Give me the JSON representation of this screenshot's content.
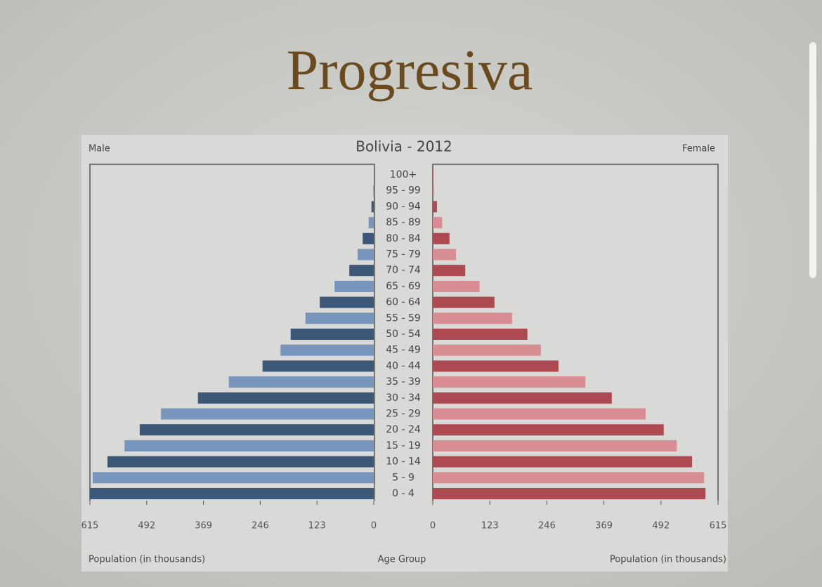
{
  "slide_title": "Progresiva",
  "chart_data": {
    "type": "pyramid",
    "title": "Bolivia - 2012",
    "xlabel": "Population (in thousands)",
    "center_label": "Age Group",
    "categories": [
      "0 - 4",
      "5 - 9",
      "10 - 14",
      "15 - 19",
      "20 - 24",
      "25 - 29",
      "30 - 34",
      "35 - 39",
      "40 - 44",
      "45 - 49",
      "50 - 54",
      "55 - 59",
      "60 - 64",
      "65 - 69",
      "70 - 74",
      "75 - 79",
      "80 - 84",
      "85 - 89",
      "90 - 94",
      "95 - 99",
      "100+"
    ],
    "series": [
      {
        "name": "Male",
        "colors": [
          "#3c5879",
          "#7896bd"
        ],
        "values": [
          615,
          609,
          577,
          540,
          507,
          461,
          381,
          314,
          241,
          202,
          180,
          148,
          117,
          85,
          53,
          35,
          24,
          11,
          5,
          1,
          0
        ]
      },
      {
        "name": "Female",
        "colors": [
          "#ad4a51",
          "#d88d92"
        ],
        "values": [
          588,
          585,
          559,
          526,
          498,
          459,
          386,
          329,
          271,
          233,
          204,
          171,
          133,
          101,
          70,
          50,
          36,
          20,
          9,
          3,
          1
        ]
      }
    ],
    "xlim": [
      0,
      615
    ],
    "xticks": [
      0,
      123,
      246,
      369,
      492,
      615
    ]
  }
}
